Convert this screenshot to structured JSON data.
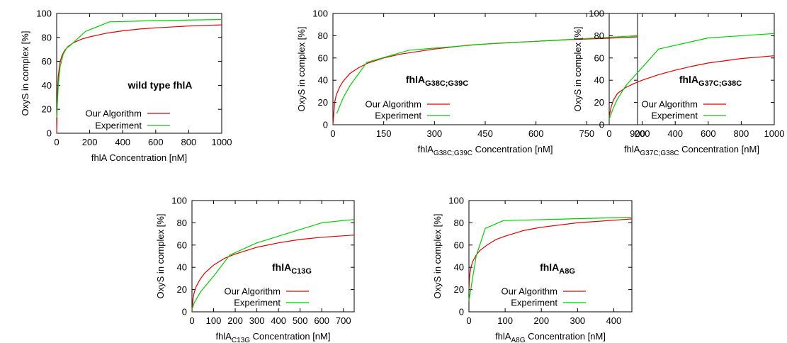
{
  "figure": {
    "background": "#ffffff"
  },
  "series_styles": [
    {
      "name": "Our Algorithm",
      "color": "#e00000"
    },
    {
      "name": "Experiment",
      "color": "#00d000"
    }
  ],
  "chart_data": [
    {
      "type": "line",
      "title": {
        "main": "wild type fhlA",
        "sub": ""
      },
      "xlabel": {
        "pre": "fhlA Concentration [nM]",
        "sub": "",
        "post": ""
      },
      "ylabel": "OxyS in complex [%]",
      "xlim": [
        0,
        1000
      ],
      "ylim": [
        0,
        100
      ],
      "xticks": [
        0,
        200,
        400,
        600,
        800,
        1000
      ],
      "yticks": [
        0,
        20,
        40,
        60,
        80,
        100
      ],
      "legend": "lower-right",
      "grid": false,
      "series": [
        {
          "name": "Our Algorithm",
          "x": [
            0,
            5,
            10,
            20,
            30,
            40,
            50,
            70,
            100,
            150,
            200,
            300,
            400,
            500,
            600,
            800,
            1000
          ],
          "y": [
            0,
            35,
            48,
            59,
            64,
            67,
            69.5,
            72.5,
            75.5,
            78.5,
            80.5,
            83.5,
            85.5,
            87,
            88,
            89.5,
            90.5
          ]
        },
        {
          "name": "Experiment",
          "x": [
            0,
            10,
            20,
            40,
            60,
            80,
            175,
            320,
            600,
            1000
          ],
          "y": [
            13,
            40,
            55,
            66,
            71,
            73,
            85,
            93,
            94,
            95
          ]
        }
      ]
    },
    {
      "type": "line",
      "title": {
        "main": "fhlA",
        "sub": "G38C;G39C"
      },
      "xlabel": {
        "pre": "fhlA",
        "sub": "G38C;G39C",
        "post": " Concentration [nM]"
      },
      "ylabel": "OxyS in complex [%]",
      "xlim": [
        0,
        900
      ],
      "ylim": [
        0,
        100
      ],
      "xticks": [
        0,
        150,
        300,
        450,
        600,
        750,
        900
      ],
      "yticks": [
        0,
        20,
        40,
        60,
        80,
        100
      ],
      "legend": "lower-right",
      "grid": false,
      "series": [
        {
          "name": "Our Algorithm",
          "x": [
            0,
            5,
            10,
            20,
            30,
            50,
            75,
            100,
            150,
            200,
            300,
            400,
            500,
            600,
            700,
            800,
            900
          ],
          "y": [
            0,
            20,
            27,
            34,
            39,
            46,
            51,
            55,
            60,
            63.5,
            68,
            71.5,
            73.5,
            75,
            76.5,
            77.5,
            79
          ]
        },
        {
          "name": "Experiment",
          "x": [
            11,
            30,
            50,
            100,
            225,
            450,
            900
          ],
          "y": [
            10,
            24,
            35,
            56,
            67,
            72.5,
            80
          ]
        }
      ]
    },
    {
      "type": "line",
      "title": {
        "main": "fhlA",
        "sub": "G37C;G38C"
      },
      "xlabel": {
        "pre": "fhlA",
        "sub": "G37C;G38C",
        "post": " Concentration [nM]"
      },
      "ylabel": "OxyS in complex [%]",
      "xlim": [
        0,
        1000
      ],
      "ylim": [
        0,
        100
      ],
      "xticks": [
        0,
        200,
        400,
        600,
        800,
        1000
      ],
      "yticks": [
        0,
        20,
        40,
        60,
        80,
        100
      ],
      "legend": "lower-right",
      "grid": false,
      "series": [
        {
          "name": "Our Algorithm",
          "x": [
            0,
            10,
            25,
            50,
            100,
            150,
            200,
            300,
            400,
            500,
            600,
            800,
            1000
          ],
          "y": [
            7,
            15,
            22,
            28,
            33.5,
            37,
            40,
            45,
            49,
            52.5,
            55.5,
            59.5,
            62
          ]
        },
        {
          "name": "Experiment",
          "x": [
            0,
            25,
            50,
            100,
            300,
            600,
            1000
          ],
          "y": [
            5,
            15,
            23,
            35,
            68,
            78,
            82
          ]
        }
      ]
    },
    {
      "type": "line",
      "title": {
        "main": "fhlA",
        "sub": "C13G"
      },
      "xlabel": {
        "pre": "fhlA",
        "sub": "C13G",
        "post": " Concentration [nM]"
      },
      "ylabel": "OxyS in complex [%]",
      "xlim": [
        0,
        750
      ],
      "ylim": [
        0,
        100
      ],
      "xticks": [
        0,
        100,
        200,
        300,
        400,
        500,
        600,
        700
      ],
      "yticks": [
        0,
        20,
        40,
        60,
        80,
        100
      ],
      "legend": "lower-right",
      "grid": false,
      "series": [
        {
          "name": "Our Algorithm",
          "x": [
            0,
            5,
            10,
            20,
            40,
            60,
            100,
            150,
            200,
            300,
            400,
            500,
            600,
            750
          ],
          "y": [
            0,
            12,
            17,
            23,
            30,
            35,
            42,
            48,
            52,
            58,
            62,
            65,
            67,
            69
          ]
        },
        {
          "name": "Experiment",
          "x": [
            0,
            10,
            40,
            100,
            175,
            300,
            600,
            750
          ],
          "y": [
            2,
            8,
            18,
            32,
            51,
            62,
            80,
            83
          ]
        }
      ]
    },
    {
      "type": "line",
      "title": {
        "main": "fhlA",
        "sub": "A8G"
      },
      "xlabel": {
        "pre": "fhlA",
        "sub": "A8G",
        "post": " Concentration [nM]"
      },
      "ylabel": "OxyS in complex [%]",
      "xlim": [
        0,
        450
      ],
      "ylim": [
        0,
        100
      ],
      "xticks": [
        0,
        100,
        200,
        300,
        400
      ],
      "yticks": [
        0,
        20,
        40,
        60,
        80,
        100
      ],
      "legend": "lower-right",
      "grid": false,
      "series": [
        {
          "name": "Our Algorithm",
          "x": [
            0,
            2,
            5,
            10,
            20,
            30,
            50,
            75,
            100,
            150,
            200,
            300,
            450
          ],
          "y": [
            20,
            33,
            39,
            45,
            51,
            55,
            60,
            65,
            68,
            73,
            76,
            80,
            83.5
          ]
        },
        {
          "name": "Experiment",
          "x": [
            0,
            10,
            20,
            45,
            95,
            450
          ],
          "y": [
            10,
            30,
            50,
            75,
            82,
            85
          ]
        }
      ]
    }
  ]
}
